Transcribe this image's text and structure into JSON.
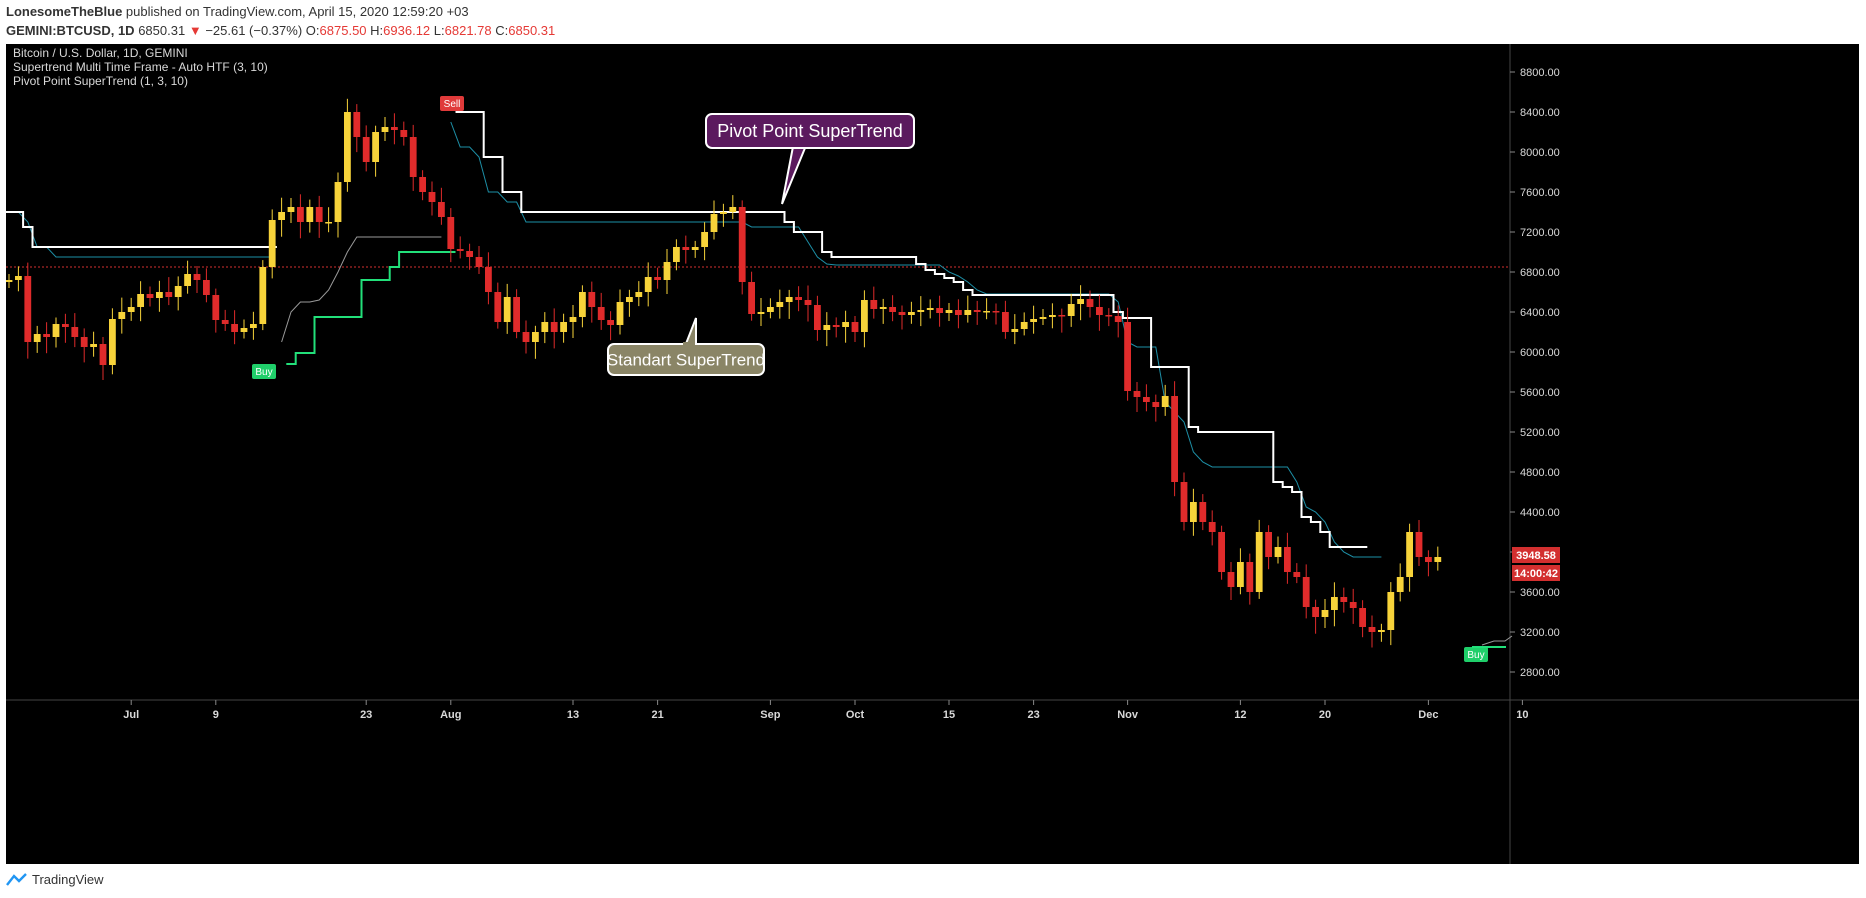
{
  "header": {
    "author": "LonesomeTheBlue",
    "published": "published on TradingView.com, April 15, 2020 12:59:20 +03",
    "symbol": "GEMINI:BTCUSD, 1D",
    "last": "6850.31",
    "change": "−25.61 (−0.37%)",
    "o_label": "O:",
    "o": "6875.50",
    "h_label": "H:",
    "h": "6936.12",
    "l_label": "L:",
    "l": "6821.78",
    "c_label": "C:",
    "c": "6850.31"
  },
  "legend": {
    "title": "Bitcoin / U.S. Dollar, 1D, GEMINI",
    "indicator1": "Supertrend Multi Time Frame - Auto HTF (3, 10)",
    "indicator2": "Pivot Point SuperTrend (1, 3, 10)"
  },
  "annotations": {
    "pivot": "Pivot Point SuperTrend",
    "standart": "Standart SuperTrend",
    "sell": "Sell",
    "buy1": "Buy",
    "buy2": "Buy"
  },
  "price_label": "3948.58",
  "timer_label": "14:00:42",
  "footer": {
    "brand": "TradingView"
  },
  "colors": {
    "up": "#f7d33a",
    "down": "#e02b2b",
    "pivot_line": "#ffffff",
    "st_line": "#1d8fa6",
    "bull_line": "#22e07a",
    "grey_line": "#9a9a9a",
    "pivot_box": "#5b1a5e",
    "standart_box": "#8a8566"
  },
  "chart_data": {
    "type": "candlestick",
    "title": "Bitcoin / U.S. Dollar, 1D, GEMINI",
    "ylim": [
      2550,
      9050
    ],
    "y_ticks": [
      "8800.00",
      "8400.00",
      "8000.00",
      "7600.00",
      "7200.00",
      "6800.00",
      "6400.00",
      "6000.00",
      "5600.00",
      "5200.00",
      "4800.00",
      "4400.00",
      "4000.00",
      "3600.00",
      "3200.00",
      "2800.00"
    ],
    "x_ticks": [
      {
        "label": "Jul",
        "i": 13
      },
      {
        "label": "9",
        "i": 22
      },
      {
        "label": "23",
        "i": 38
      },
      {
        "label": "Aug",
        "i": 47
      },
      {
        "label": "13",
        "i": 60
      },
      {
        "label": "21",
        "i": 69
      },
      {
        "label": "Sep",
        "i": 81
      },
      {
        "label": "Oct",
        "i": 90
      },
      {
        "label": "15",
        "i": 100
      },
      {
        "label": "23",
        "i": 109
      },
      {
        "label": "Nov",
        "i": 119
      },
      {
        "label": "12",
        "i": 131
      },
      {
        "label": "20",
        "i": 140
      },
      {
        "label": "Dec",
        "i": 151
      },
      {
        "label": "10",
        "i": 161
      }
    ],
    "current_price_line": 6850.31,
    "closes": [
      6720,
      6760,
      6100,
      6180,
      6150,
      6280,
      6250,
      6150,
      6050,
      6080,
      5870,
      6330,
      6400,
      6450,
      6580,
      6540,
      6600,
      6550,
      6660,
      6780,
      6720,
      6570,
      6320,
      6280,
      6200,
      6240,
      6280,
      6850,
      7320,
      7400,
      7450,
      7300,
      7450,
      7300,
      7300,
      7700,
      8400,
      8150,
      7900,
      8200,
      8250,
      8220,
      8150,
      7750,
      7600,
      7500,
      7350,
      7030,
      7010,
      6950,
      6850,
      6600,
      6300,
      6550,
      6200,
      6100,
      6200,
      6300,
      6200,
      6300,
      6350,
      6600,
      6450,
      6320,
      6270,
      6500,
      6550,
      6600,
      6750,
      6720,
      6900,
      7050,
      7020,
      7050,
      7200,
      7380,
      7400,
      7450,
      6700,
      6380,
      6400,
      6450,
      6500,
      6550,
      6520,
      6470,
      6220,
      6270,
      6250,
      6300,
      6200,
      6520,
      6430,
      6450,
      6400,
      6370,
      6400,
      6420,
      6440,
      6390,
      6420,
      6370,
      6420,
      6400,
      6410,
      6400,
      6200,
      6230,
      6300,
      6330,
      6350,
      6370,
      6360,
      6480,
      6530,
      6450,
      6370,
      6360,
      6300,
      5610,
      5550,
      5500,
      5450,
      5560,
      4700,
      4300,
      4500,
      4300,
      4200,
      3800,
      3650,
      3900,
      3600,
      4200,
      3950,
      4050,
      3800,
      3750,
      3450,
      3350,
      3420,
      3550,
      3500,
      3440,
      3250,
      3200,
      3220,
      3600,
      3750,
      4200,
      3950,
      3900,
      3950
    ],
    "st_line": [
      7400,
      7400,
      7300,
      7050,
      7050,
      6950,
      6950,
      6950,
      6950,
      6950,
      6950,
      6950,
      6950,
      6950,
      6950,
      6950,
      6950,
      6950,
      6950,
      6950,
      6950,
      6950,
      6950,
      6950,
      6950,
      6950,
      6950,
      6950,
      6950,
      null,
      null,
      null,
      null,
      null,
      null,
      null,
      null,
      null,
      null,
      null,
      null,
      null,
      null,
      null,
      null,
      null,
      null,
      8300,
      8050,
      8050,
      7950,
      7600,
      7600,
      7500,
      7500,
      7300,
      7300,
      7300,
      7300,
      7300,
      7300,
      7300,
      7300,
      7300,
      7300,
      7300,
      7300,
      7300,
      7300,
      7300,
      7300,
      7300,
      7300,
      7300,
      7300,
      7300,
      7300,
      7300,
      7300,
      7250,
      7250,
      7250,
      7250,
      7250,
      7250,
      7100,
      6950,
      6880,
      6870,
      6870,
      6870,
      6870,
      6870,
      6870,
      6870,
      6870,
      6870,
      6870,
      6870,
      6870,
      6800,
      6760,
      6700,
      6620,
      6580,
      6580,
      6580,
      6580,
      6580,
      6580,
      6580,
      6580,
      6580,
      6580,
      6580,
      6580,
      6580,
      6580,
      6500,
      6100,
      6050,
      6050,
      6050,
      5500,
      5400,
      5300,
      5000,
      4900,
      4850,
      4850,
      4850,
      4850,
      4850,
      4850,
      4850,
      4850,
      4850,
      4700,
      4450,
      4400,
      4300,
      4100,
      4000,
      3950,
      3950,
      3950,
      3950
    ],
    "pivot_line": [
      7400,
      7400,
      7250,
      7050,
      7050,
      7050,
      7050,
      7050,
      7050,
      7050,
      7050,
      7050,
      7050,
      7050,
      7050,
      7050,
      7050,
      7050,
      7050,
      7050,
      7050,
      7050,
      7050,
      7050,
      7050,
      7050,
      7050,
      7050,
      7050,
      null,
      null,
      null,
      null,
      null,
      null,
      null,
      null,
      null,
      null,
      null,
      null,
      null,
      null,
      null,
      null,
      null,
      null,
      null,
      8400,
      8400,
      8400,
      7950,
      7950,
      7600,
      7600,
      7400,
      7400,
      7400,
      7400,
      7400,
      7400,
      7400,
      7400,
      7400,
      7400,
      7400,
      7400,
      7400,
      7400,
      7400,
      7400,
      7400,
      7400,
      7400,
      7400,
      7400,
      7400,
      7400,
      7400,
      7400,
      7400,
      7400,
      7400,
      7300,
      7200,
      7200,
      7200,
      7000,
      6950,
      6950,
      6950,
      6950,
      6950,
      6950,
      6950,
      6950,
      6950,
      6880,
      6820,
      6780,
      6740,
      6700,
      6620,
      6570,
      6570,
      6570,
      6570,
      6570,
      6570,
      6570,
      6570,
      6570,
      6570,
      6570,
      6570,
      6570,
      6570,
      6570,
      6400,
      6340,
      6340,
      6340,
      5850,
      5850,
      5850,
      5850,
      5250,
      5200,
      5200,
      5200,
      5200,
      5200,
      5200,
      5200,
      5200,
      4700,
      4650,
      4600,
      4350,
      4300,
      4200,
      4050,
      4050,
      4050,
      4050
    ],
    "bull_line": [
      null,
      null,
      null,
      null,
      null,
      null,
      null,
      null,
      null,
      null,
      null,
      null,
      null,
      null,
      null,
      null,
      null,
      null,
      null,
      null,
      null,
      null,
      null,
      null,
      null,
      null,
      null,
      null,
      null,
      null,
      5880,
      5990,
      5990,
      6350,
      6350,
      6350,
      6350,
      6350,
      6720,
      6720,
      6720,
      6850,
      7000,
      7000,
      7000,
      7000,
      7000,
      7000
    ],
    "grey_line": [
      null,
      null,
      null,
      null,
      null,
      null,
      null,
      null,
      null,
      null,
      null,
      null,
      null,
      null,
      null,
      null,
      null,
      null,
      null,
      null,
      null,
      null,
      null,
      null,
      null,
      null,
      null,
      null,
      null,
      6100,
      6400,
      6500,
      6500,
      6520,
      6620,
      6800,
      7000,
      7150,
      7150,
      7150,
      7150,
      7150,
      7150,
      7150,
      7150,
      7150,
      7150
    ]
  }
}
